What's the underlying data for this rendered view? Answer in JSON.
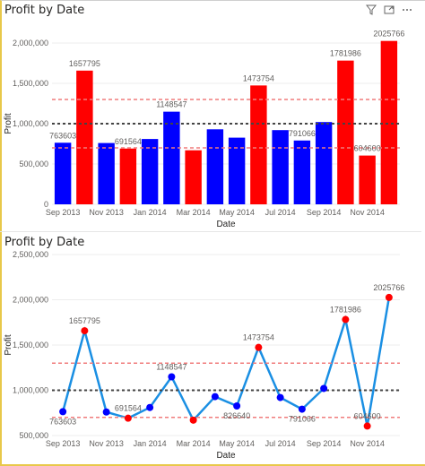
{
  "chart_data": [
    {
      "type": "bar",
      "title": "Profit by Date",
      "xlabel": "Date",
      "ylabel": "Profit",
      "ylim": [
        0,
        2000000
      ],
      "yticks": [
        "0",
        "500,000",
        "1,000,000",
        "1,500,000",
        "2,000,000"
      ],
      "xticks": [
        "Sep 2013",
        "Nov 2013",
        "Jan 2014",
        "Mar 2014",
        "May 2014",
        "Jul 2014",
        "Sep 2014",
        "Nov 2014"
      ],
      "categories": [
        "Sep 2013",
        "Oct 2013",
        "Nov 2013",
        "Dec 2013",
        "Jan 2014",
        "Feb 2014",
        "Mar 2014",
        "Apr 2014",
        "May 2014",
        "Jun 2014",
        "Jul 2014",
        "Aug 2014",
        "Sep 2014",
        "Oct 2014",
        "Nov 2014",
        "Dec 2014"
      ],
      "values": [
        763603,
        1657795,
        760000,
        691564,
        810000,
        1148547,
        670000,
        930000,
        826640,
        1473754,
        920000,
        791066,
        1020000,
        1781986,
        604600,
        2025766
      ],
      "data_labels": [
        "763603",
        "1657795",
        "",
        "691564",
        "",
        "1148547",
        "",
        "",
        "",
        "1473754",
        "",
        "791066",
        "",
        "1781986",
        "604600",
        "2025766"
      ],
      "highlight": [
        "blue",
        "red",
        "blue",
        "red",
        "blue",
        "blue",
        "red",
        "blue",
        "blue",
        "red",
        "blue",
        "blue",
        "blue",
        "red",
        "red",
        "red"
      ],
      "reference_lines": {
        "mean": 1000000,
        "upper": 1300000,
        "lower": 700000
      },
      "colors": {
        "normal": "#0000ff",
        "extreme": "#ff0000",
        "mean_line": "#444444",
        "band_line": "#f07c7c"
      }
    },
    {
      "type": "line",
      "title": "Profit by Date",
      "xlabel": "Date",
      "ylabel": "Profit",
      "ylim": [
        500000,
        2500000
      ],
      "yticks": [
        "500,000",
        "1,000,000",
        "1,500,000",
        "2,000,000",
        "2,500,000"
      ],
      "xticks": [
        "Sep 2013",
        "Nov 2013",
        "Jan 2014",
        "Mar 2014",
        "May 2014",
        "Jul 2014",
        "Sep 2014",
        "Nov 2014"
      ],
      "categories": [
        "Sep 2013",
        "Oct 2013",
        "Nov 2013",
        "Dec 2013",
        "Jan 2014",
        "Feb 2014",
        "Mar 2014",
        "Apr 2014",
        "May 2014",
        "Jun 2014",
        "Jul 2014",
        "Aug 2014",
        "Sep 2014",
        "Oct 2014",
        "Nov 2014",
        "Dec 2014"
      ],
      "values": [
        763603,
        1657795,
        760000,
        691564,
        810000,
        1148547,
        670000,
        930000,
        826640,
        1473754,
        920000,
        791066,
        1020000,
        1781986,
        604600,
        2025766
      ],
      "data_labels": [
        "763603",
        "1657795",
        "",
        "691564",
        "",
        "1148547",
        "",
        "",
        "826640",
        "1473754",
        "",
        "791066",
        "",
        "1781986",
        "604600",
        "2025766"
      ],
      "highlight": [
        "blue",
        "red",
        "blue",
        "red",
        "blue",
        "blue",
        "red",
        "blue",
        "blue",
        "red",
        "blue",
        "blue",
        "blue",
        "red",
        "red",
        "red"
      ],
      "reference_lines": {
        "mean": 1000000,
        "upper": 1300000,
        "lower": 700000
      },
      "colors": {
        "line": "#1a8fe3",
        "normal": "#0000ff",
        "extreme": "#ff0000",
        "mean_line": "#444444",
        "band_line": "#f07c7c"
      }
    }
  ]
}
